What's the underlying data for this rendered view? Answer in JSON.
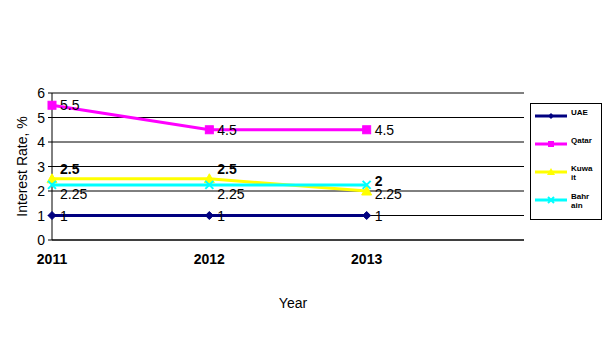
{
  "chart_data": {
    "type": "line",
    "y_label": "Interest Rate, %",
    "x_label": "Year",
    "categories": [
      "2011",
      "2012",
      "2013",
      null
    ],
    "series": [
      {
        "name": "UAE",
        "color": "#000080",
        "marker": "diamond",
        "line_style": "solid",
        "values": [
          1,
          1,
          1,
          null
        ]
      },
      {
        "name": "Qatar",
        "color": "#ff00ff",
        "marker": "square",
        "line_style": "solid",
        "values": [
          5.5,
          4.5,
          4.5,
          null
        ]
      },
      {
        "name": "Kuwait",
        "color": "#ffff00",
        "marker": "triangle",
        "line_style": "solid",
        "values": [
          2.5,
          2.5,
          2,
          null
        ]
      },
      {
        "name": "Bahrain",
        "color": "#00ffff",
        "marker": "x",
        "line_style": "solid",
        "values": [
          2.25,
          2.25,
          2.25,
          null
        ]
      }
    ],
    "ylim": [
      0,
      6
    ],
    "yticks": [
      0,
      1,
      2,
      3,
      4,
      5,
      6
    ],
    "grid": true,
    "legend": "right",
    "data_labels": true
  }
}
